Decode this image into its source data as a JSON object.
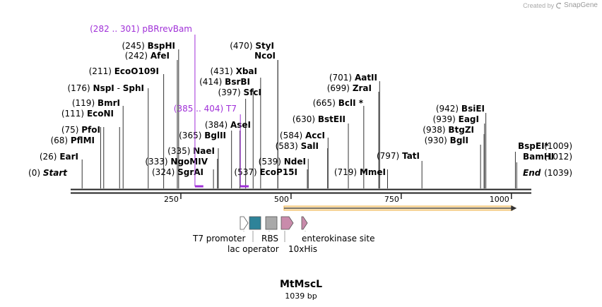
{
  "credit": {
    "prefix": "Created by",
    "brand": "SnapGene"
  },
  "plasmid": {
    "name": "MtMscL",
    "length_label": "1039 bp",
    "length": 1039
  },
  "axis": {
    "ticks": [
      {
        "bp": 250,
        "label": "250"
      },
      {
        "bp": 500,
        "label": "500"
      },
      {
        "bp": 750,
        "label": "750"
      },
      {
        "bp": 1000,
        "label": "1000"
      }
    ]
  },
  "sites": [
    {
      "pos": "(0)",
      "name": "Start",
      "bp": 0,
      "style": "italic"
    },
    {
      "pos": "(26)",
      "name": "EarI",
      "bp": 26
    },
    {
      "pos": "(68)",
      "name": "PflMI",
      "bp": 68
    },
    {
      "pos": "(75)",
      "name": "PfoI",
      "bp": 75
    },
    {
      "pos": "(111)",
      "name": "EcoNI",
      "bp": 111
    },
    {
      "pos": "(119)",
      "name": "BmrI",
      "bp": 119
    },
    {
      "pos": "(176)",
      "name": "NspI",
      "name2": "SphI",
      "bp": 176
    },
    {
      "pos": "(211)",
      "name": "EcoO109I",
      "bp": 211
    },
    {
      "pos": "(242)",
      "name": "AfeI",
      "bp": 242
    },
    {
      "pos": "(245)",
      "name": "BspHI",
      "bp": 245
    },
    {
      "pos": "(324)",
      "name": "SgrAI",
      "bp": 324
    },
    {
      "pos": "(333)",
      "name": "NgoMIV",
      "bp": 333
    },
    {
      "pos": "(335)",
      "name": "NaeI",
      "bp": 335
    },
    {
      "pos": "(365)",
      "name": "BglII",
      "bp": 365
    },
    {
      "pos": "(384)",
      "name": "AseI",
      "bp": 384
    },
    {
      "pos": "(397)",
      "name": "SfcI",
      "bp": 397
    },
    {
      "pos": "(414)",
      "name": "BsrBI",
      "bp": 414
    },
    {
      "pos": "(431)",
      "name": "XbaI",
      "bp": 431
    },
    {
      "pos": "(470)",
      "name": "StyI",
      "bp": 470
    },
    {
      "pos": "",
      "name": "NcoI",
      "bp": 470
    },
    {
      "pos": "(537)",
      "name": "EcoP15I",
      "bp": 537
    },
    {
      "pos": "(539)",
      "name": "NdeI",
      "bp": 539
    },
    {
      "pos": "(583)",
      "name": "SalI",
      "bp": 583
    },
    {
      "pos": "(584)",
      "name": "AccI",
      "bp": 584
    },
    {
      "pos": "(630)",
      "name": "BstEII",
      "bp": 630
    },
    {
      "pos": "(665)",
      "name": "BclI",
      "mark": "*",
      "bp": 665
    },
    {
      "pos": "(699)",
      "name": "ZraI",
      "bp": 699
    },
    {
      "pos": "(701)",
      "name": "AatII",
      "bp": 701
    },
    {
      "pos": "(719)",
      "name": "MmeI",
      "bp": 719
    },
    {
      "pos": "(797)",
      "name": "TatI",
      "bp": 797
    },
    {
      "pos": "(930)",
      "name": "BglI",
      "bp": 930
    },
    {
      "pos": "(938)",
      "name": "BtgZI",
      "bp": 938
    },
    {
      "pos": "(939)",
      "name": "EagI",
      "bp": 939
    },
    {
      "pos": "(942)",
      "name": "BsiEI",
      "bp": 942
    },
    {
      "pos": "(1009)",
      "name": "BspEI",
      "mark": "*",
      "bp": 1009
    },
    {
      "pos": "(1012)",
      "name": "BamHI",
      "bp": 1012
    },
    {
      "pos": "(1039)",
      "name": "End",
      "bp": 1039,
      "style": "italic"
    }
  ],
  "primers": [
    {
      "range": "(282 .. 301)",
      "name": "pBRrevBam",
      "start": 282,
      "end": 301
    },
    {
      "range": "(385 .. 404)",
      "name": "T7",
      "start": 385,
      "end": 404
    }
  ],
  "features": [
    {
      "name": "T7 promoter",
      "color": "#ffffff",
      "shape": "arrow"
    },
    {
      "name": "lac operator",
      "color": "#2e8399",
      "shape": "box"
    },
    {
      "name": "RBS",
      "color": "#a9a9a9",
      "shape": "box"
    },
    {
      "name": "10xHis",
      "color": "#c98bab",
      "shape": "arrow"
    },
    {
      "name": "enterokinase site",
      "color": "#c98bab",
      "shape": "arrow"
    }
  ],
  "orf": {
    "start": 484,
    "end": 1012,
    "color": "#f2b64c"
  },
  "colors": {
    "primer": "#a030d8",
    "backbone": "#222222"
  }
}
